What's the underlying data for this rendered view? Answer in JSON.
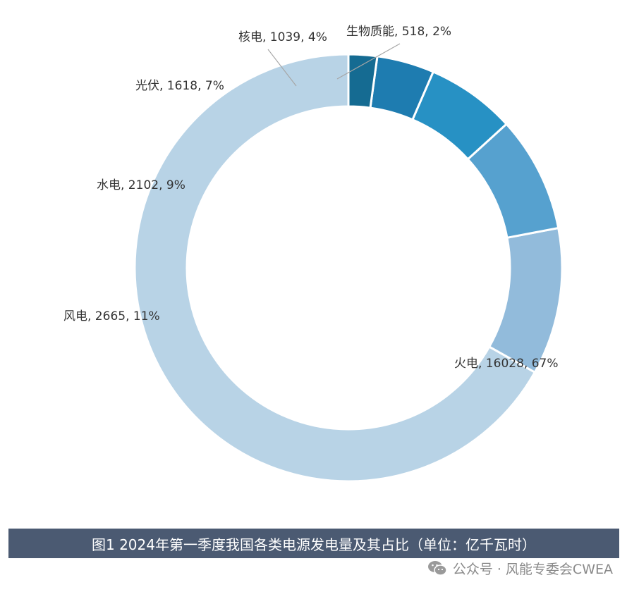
{
  "chart_data": {
    "type": "donut",
    "series": [
      {
        "label": "火电, 16028, 67%",
        "category": "火电",
        "value": 16028,
        "percent": 67,
        "color": "#b8d3e6"
      },
      {
        "label": "风电, 2665, 11%",
        "category": "风电",
        "value": 2665,
        "percent": 11,
        "color": "#92bbdb"
      },
      {
        "label": "水电, 2102, 9%",
        "category": "水电",
        "value": 2102,
        "percent": 9,
        "color": "#56a1cf"
      },
      {
        "label": "光伏, 1618, 7%",
        "category": "光伏",
        "value": 1618,
        "percent": 7,
        "color": "#2791c4"
      },
      {
        "label": "核电, 1039, 4%",
        "category": "核电",
        "value": 1039,
        "percent": 4,
        "color": "#1e7cb0"
      },
      {
        "label": "生物质能, 518, 2%",
        "category": "生物质能",
        "value": 518,
        "percent": 2,
        "color": "#156b92"
      }
    ]
  },
  "caption": "图1 2024年第一季度我国各类电源发电量及其占比（单位：亿千瓦时）",
  "watermark": {
    "icon": "wechat-icon",
    "text": "公众号 · 风能专委会CWEA"
  }
}
